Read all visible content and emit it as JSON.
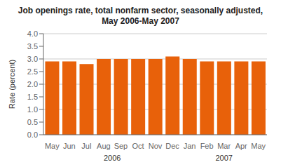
{
  "chart_data": {
    "type": "bar",
    "title": "Job openings rate, total nonfarm sector, seasonally adjusted,\nMay 2006-May 2007",
    "categories": [
      "May",
      "Jun",
      "Jul",
      "Aug",
      "Sep",
      "Oct",
      "Nov",
      "Dec",
      "Jan",
      "Feb",
      "Mar",
      "Apr",
      "May"
    ],
    "values": [
      2.9,
      2.9,
      2.8,
      3.0,
      3.0,
      3.0,
      3.0,
      3.1,
      3.0,
      2.9,
      2.9,
      2.9,
      2.9
    ],
    "color": "#E8610A",
    "ylabel": "Rate (percent)",
    "ylim": [
      0.0,
      4.0
    ],
    "yticks": [
      {
        "value": 0,
        "label": "0.0"
      },
      0.5,
      {
        "value": 1,
        "label": "1.0"
      },
      1.5,
      {
        "value": 2,
        "label": "2.0"
      },
      2.5,
      {
        "value": 3,
        "label": "3.0"
      },
      3.5,
      {
        "value": 4,
        "label": "4.0"
      }
    ],
    "grid": true,
    "annotations": [
      {
        "text": "2006",
        "x": 3.5
      },
      {
        "text": "2007",
        "x": 10.0
      }
    ]
  }
}
